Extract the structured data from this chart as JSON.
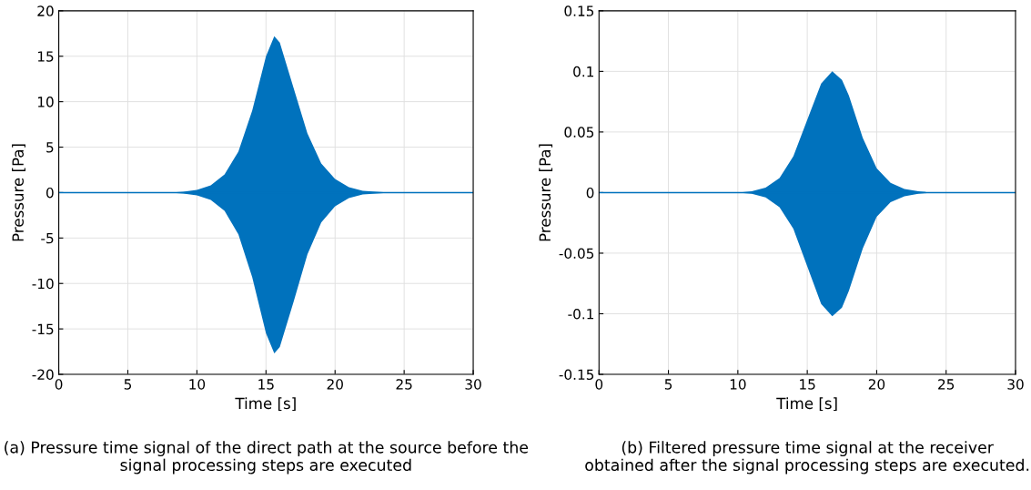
{
  "chart_data": [
    {
      "type": "line",
      "xlabel": "Time [s]",
      "ylabel": "Pressure [Pa]",
      "xlim": [
        0,
        30
      ],
      "xticks": [
        0,
        5,
        10,
        15,
        20,
        25,
        30
      ],
      "ylim": [
        -20,
        20
      ],
      "yticks": [
        -20,
        -15,
        -10,
        -5,
        0,
        5,
        10,
        15,
        20
      ],
      "grid": true,
      "series": [
        {
          "color": "#0072bd",
          "x": [
            0,
            8,
            9,
            10,
            11,
            12,
            13,
            14,
            15,
            15.6,
            16,
            17,
            18,
            19,
            20,
            21,
            22,
            23,
            24,
            25,
            30
          ],
          "values": [
            0,
            0,
            0,
            0,
            0,
            0,
            0,
            0,
            0,
            0,
            0,
            0,
            0,
            0,
            0,
            0,
            0,
            0,
            0,
            0,
            0
          ],
          "upper": [
            0,
            0,
            0.1,
            0.3,
            0.8,
            2,
            4.5,
            9,
            15,
            17.2,
            16.5,
            11.5,
            6.5,
            3.2,
            1.5,
            0.6,
            0.2,
            0.1,
            0,
            0,
            0
          ],
          "lower": [
            0,
            0,
            -0.1,
            -0.3,
            -0.8,
            -2,
            -4.6,
            -9.3,
            -15.5,
            -17.7,
            -17,
            -12,
            -6.8,
            -3.3,
            -1.5,
            -0.6,
            -0.2,
            -0.1,
            0,
            0,
            0
          ]
        }
      ],
      "annotations": [
        "(a) Pressure time signal of the direct path at the source before the signal processing steps are executed"
      ]
    },
    {
      "type": "line",
      "xlabel": "Time [s]",
      "ylabel": "Pressure [Pa]",
      "xlim": [
        0,
        30
      ],
      "xticks": [
        0,
        5,
        10,
        15,
        20,
        25,
        30
      ],
      "ylim": [
        -0.15,
        0.15
      ],
      "yticks": [
        -0.15,
        -0.1,
        -0.05,
        0,
        0.05,
        0.1,
        0.15
      ],
      "grid": true,
      "series": [
        {
          "color": "#0072bd",
          "x": [
            0,
            10,
            11,
            12,
            13,
            14,
            15,
            16,
            16.8,
            17.5,
            18,
            19,
            20,
            21,
            22,
            23,
            24,
            30
          ],
          "values": [
            0,
            0,
            0,
            0,
            0,
            0,
            0,
            0,
            0,
            0,
            0,
            0,
            0,
            0,
            0,
            0,
            0,
            0
          ],
          "upper": [
            0,
            0,
            0.001,
            0.004,
            0.012,
            0.03,
            0.06,
            0.09,
            0.1,
            0.093,
            0.08,
            0.045,
            0.02,
            0.008,
            0.003,
            0.001,
            0,
            0
          ],
          "lower": [
            0,
            0,
            -0.001,
            -0.004,
            -0.012,
            -0.03,
            -0.061,
            -0.092,
            -0.102,
            -0.095,
            -0.081,
            -0.046,
            -0.02,
            -0.008,
            -0.003,
            -0.001,
            0,
            0
          ]
        }
      ],
      "annotations": [
        "(b) Filtered pressure time signal at the receiver obtained after the signal processing steps are executed."
      ]
    }
  ]
}
